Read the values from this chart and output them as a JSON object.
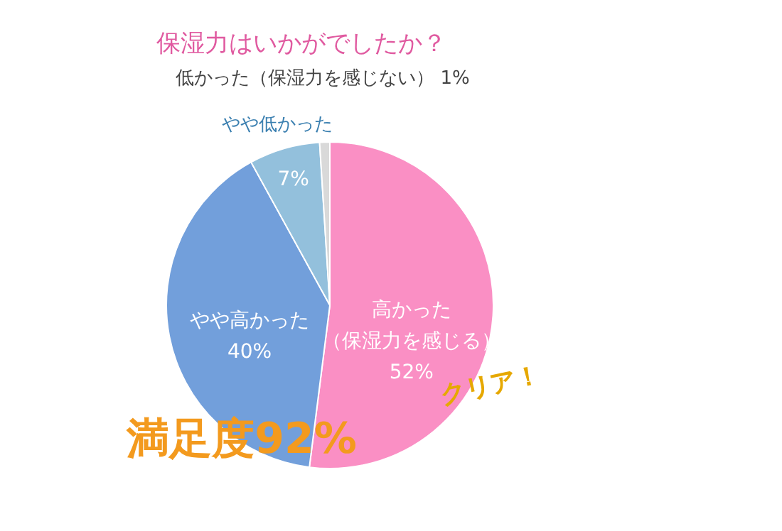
{
  "chart_data": {
    "type": "pie",
    "title": "保湿力はいかがでしたか？",
    "categories": [
      "高かった（保湿力を感じる）",
      "やや高かった",
      "やや低かった",
      "低かった（保湿力を感じない）"
    ],
    "values": [
      52,
      40,
      7,
      1
    ],
    "colors": [
      "#fa8fc4",
      "#729fdb",
      "#93c0dc",
      "#d9d9d9"
    ],
    "value_labels": [
      "52%",
      "40%",
      "7%",
      "1%"
    ],
    "legend": false,
    "annotations": [
      "満足度92%",
      "クリア！"
    ]
  }
}
